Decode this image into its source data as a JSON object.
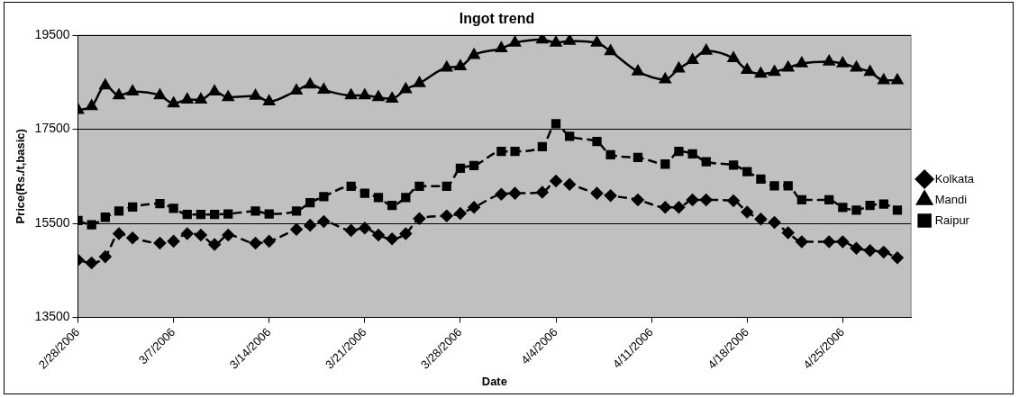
{
  "chart_data": {
    "type": "line",
    "title": "Ingot trend",
    "xlabel": "Date",
    "ylabel": "Price(Rs./t,basic)",
    "x": [
      "2006-02-28",
      "2006-03-01",
      "2006-03-02",
      "2006-03-03",
      "2006-03-04",
      "2006-03-06",
      "2006-03-07",
      "2006-03-08",
      "2006-03-09",
      "2006-03-10",
      "2006-03-11",
      "2006-03-13",
      "2006-03-14",
      "2006-03-16",
      "2006-03-17",
      "2006-03-18",
      "2006-03-20",
      "2006-03-21",
      "2006-03-22",
      "2006-03-23",
      "2006-03-24",
      "2006-03-25",
      "2006-03-27",
      "2006-03-28",
      "2006-03-29",
      "2006-03-31",
      "2006-04-01",
      "2006-04-03",
      "2006-04-04",
      "2006-04-05",
      "2006-04-07",
      "2006-04-08",
      "2006-04-10",
      "2006-04-12",
      "2006-04-13",
      "2006-04-14",
      "2006-04-15",
      "2006-04-17",
      "2006-04-18",
      "2006-04-19",
      "2006-04-20",
      "2006-04-21",
      "2006-04-22",
      "2006-04-24",
      "2006-04-25",
      "2006-04-26",
      "2006-04-27",
      "2006-04-28",
      "2006-04-29"
    ],
    "series": [
      {
        "name": "Kolkata",
        "color": "#000000",
        "marker": "diamond",
        "line_style": "dashed",
        "values": [
          14720,
          14660,
          14790,
          15280,
          15190,
          15080,
          15120,
          15280,
          15250,
          15050,
          15250,
          15080,
          15120,
          15370,
          15460,
          15540,
          15350,
          15400,
          15250,
          15170,
          15280,
          15600,
          15660,
          15710,
          15840,
          16120,
          16140,
          16160,
          16400,
          16330,
          16140,
          16090,
          16000,
          15840,
          15840,
          16000,
          16000,
          15980,
          15740,
          15590,
          15520,
          15300,
          15110,
          15110,
          15110,
          14970,
          14920,
          14890,
          14770
        ]
      },
      {
        "name": "Mandi",
        "color": "#000000",
        "marker": "triangle",
        "line_style": "solid",
        "values": [
          17910,
          17990,
          18430,
          18220,
          18300,
          18220,
          18050,
          18130,
          18130,
          18300,
          18180,
          18210,
          18090,
          18320,
          18450,
          18340,
          18220,
          18220,
          18180,
          18150,
          18350,
          18480,
          18810,
          18840,
          19080,
          19220,
          19340,
          19410,
          19340,
          19380,
          19340,
          19160,
          18730,
          18560,
          18790,
          18970,
          19170,
          19010,
          18760,
          18680,
          18720,
          18810,
          18900,
          18940,
          18900,
          18810,
          18720,
          18540,
          18540
        ]
      },
      {
        "name": "Raipur",
        "color": "#000000",
        "marker": "square",
        "line_style": "dashed",
        "values": [
          15560,
          15470,
          15630,
          15760,
          15850,
          15920,
          15820,
          15690,
          15690,
          15690,
          15700,
          15760,
          15700,
          15760,
          15940,
          16070,
          16290,
          16140,
          16050,
          15880,
          16050,
          16290,
          16290,
          16670,
          16730,
          17030,
          17030,
          17130,
          17620,
          17350,
          17240,
          16960,
          16900,
          16760,
          17030,
          16980,
          16810,
          16740,
          16600,
          16440,
          16300,
          16300,
          16000,
          16000,
          15840,
          15780,
          15880,
          15910,
          15780
        ]
      }
    ],
    "xlim": [
      "2006-02-28",
      "2006-04-30"
    ],
    "xticks": [
      {
        "value": "2006-02-28",
        "label": "2/28/2006"
      },
      {
        "value": "2006-03-07",
        "label": "3/7/2006"
      },
      {
        "value": "2006-03-14",
        "label": "3/14/2006"
      },
      {
        "value": "2006-03-21",
        "label": "3/21/2006"
      },
      {
        "value": "2006-03-28",
        "label": "3/28/2006"
      },
      {
        "value": "2006-04-04",
        "label": "4/4/2006"
      },
      {
        "value": "2006-04-11",
        "label": "4/11/2006"
      },
      {
        "value": "2006-04-18",
        "label": "4/18/2006"
      },
      {
        "value": "2006-04-25",
        "label": "4/25/2006"
      }
    ],
    "ylim": [
      13500,
      19500
    ],
    "yticks": [
      13500,
      15500,
      17500,
      19500
    ],
    "grid": "y",
    "legend": "right"
  }
}
